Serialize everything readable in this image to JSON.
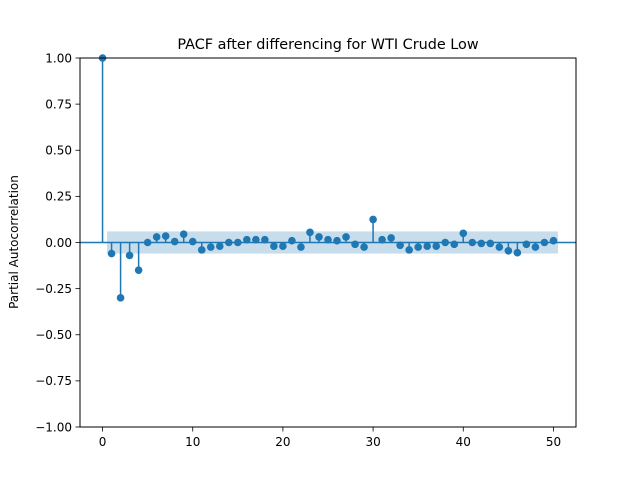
{
  "chart_data": {
    "type": "stem",
    "title": "PACF after differencing for WTI Crude Low",
    "xlabel": "",
    "ylabel": "Partial Autocorrelation",
    "xlim": [
      -2.5,
      52.5
    ],
    "ylim": [
      -1.0,
      1.0
    ],
    "xticks": [
      0,
      10,
      20,
      30,
      40,
      50
    ],
    "xtick_labels": [
      "0",
      "10",
      "20",
      "30",
      "40",
      "50"
    ],
    "yticks": [
      -1.0,
      -0.75,
      -0.5,
      -0.25,
      0.0,
      0.25,
      0.5,
      0.75,
      1.0
    ],
    "ytick_labels": [
      "−1.00",
      "−0.75",
      "−0.50",
      "−0.25",
      "0.00",
      "0.25",
      "0.50",
      "0.75",
      "1.00"
    ],
    "grid": false,
    "series": [
      {
        "lags": [
          0,
          1,
          2,
          3,
          4,
          5,
          6,
          7,
          8,
          9,
          10,
          11,
          12,
          13,
          14,
          15,
          16,
          17,
          18,
          19,
          20,
          21,
          22,
          23,
          24,
          25,
          26,
          27,
          28,
          29,
          30,
          31,
          32,
          33,
          34,
          35,
          36,
          37,
          38,
          39,
          40,
          41,
          42,
          43,
          44,
          45,
          46,
          47,
          48,
          49,
          50
        ],
        "values": [
          1.0,
          -0.06,
          -0.3,
          -0.07,
          -0.15,
          0.0,
          0.03,
          0.035,
          0.005,
          0.045,
          0.005,
          -0.04,
          -0.025,
          -0.02,
          0.0,
          0.0,
          0.015,
          0.015,
          0.015,
          -0.02,
          -0.02,
          0.01,
          -0.025,
          0.055,
          0.03,
          0.015,
          0.01,
          0.03,
          -0.01,
          -0.025,
          0.125,
          0.015,
          0.025,
          -0.015,
          -0.04,
          -0.025,
          -0.02,
          -0.02,
          0.0,
          -0.01,
          0.05,
          0.0,
          -0.005,
          -0.005,
          -0.025,
          -0.045,
          -0.055,
          -0.01,
          -0.025,
          0.0,
          0.01
        ]
      }
    ],
    "confidence_band": {
      "x": [
        0.5,
        50.5
      ],
      "upper": 0.06,
      "lower": -0.06
    },
    "colors": {
      "stem": "#1f77b4",
      "band": "#1f77b4",
      "band_opacity": 0.25,
      "zero_line": "#1f77b4"
    }
  }
}
